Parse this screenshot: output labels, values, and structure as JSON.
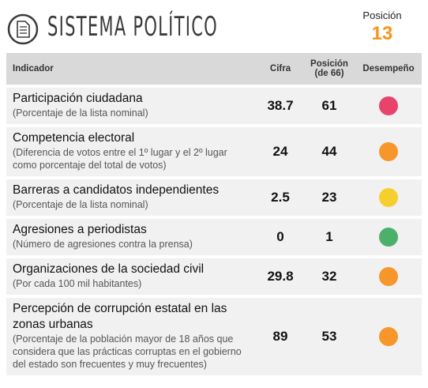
{
  "header": {
    "title": "SISTEMA POLÍTICO",
    "position_label": "Posición",
    "position_value": 13,
    "position_color": "#f7941d"
  },
  "table": {
    "columns": [
      "Indicador",
      "Cifra",
      "Posición (de 66)",
      "Desempeño"
    ],
    "rows": [
      {
        "indicator": "Participación ciudadana",
        "description": "(Porcentaje de la lista nominal)",
        "value": 38.7,
        "rank": 61,
        "color": "#e8436b"
      },
      {
        "indicator": "Competencia electoral",
        "description": "(Diferencia de votos entre el 1º lugar y el 2º lugar como porcentaje del total de votos)",
        "value": 24,
        "rank": 44,
        "color": "#f7962b"
      },
      {
        "indicator": "Barreras a candidatos independientes",
        "description": "(Porcentaje de la lista nominal)",
        "value": 2.5,
        "rank": 23,
        "color": "#f5cf2e"
      },
      {
        "indicator": "Agresiones a periodistas",
        "description": "(Número de agresiones contra la prensa)",
        "value": 0,
        "rank": 1,
        "color": "#4caf6a"
      },
      {
        "indicator": "Organizaciones de la sociedad civil",
        "description": "(Por cada 100 mil habitantes)",
        "value": 29.8,
        "rank": 32,
        "color": "#f7962b"
      },
      {
        "indicator": "Percepción de corrupción estatal en las zonas urbanas",
        "description": "(Porcentaje de la población mayor de 18 años que considera que las prácticas corruptas en el gobierno del estado son frecuentes y muy frecuentes)",
        "value": 89,
        "rank": 53,
        "color": "#f7962b"
      }
    ]
  }
}
